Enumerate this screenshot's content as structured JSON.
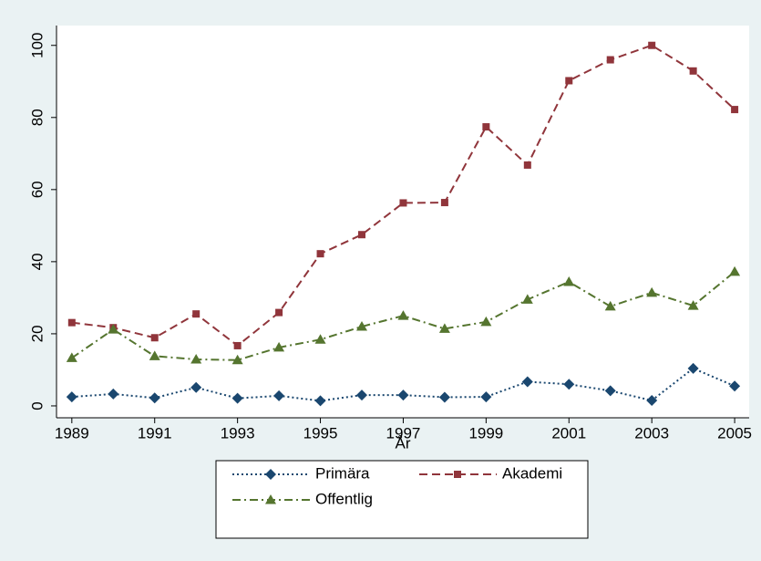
{
  "chart_data": {
    "type": "line",
    "x_label": "År",
    "x": [
      1989,
      1990,
      1991,
      1992,
      1993,
      1994,
      1995,
      1996,
      1997,
      1998,
      1999,
      2000,
      2001,
      2002,
      2003,
      2004,
      2005
    ],
    "series": [
      {
        "name": "Primära",
        "color": "#1a476f",
        "dash": "2 3",
        "marker": "diamond",
        "values": [
          2.5,
          3.3,
          2.2,
          5.1,
          2.1,
          2.8,
          1.4,
          3.0,
          3.0,
          2.4,
          2.5,
          6.7,
          6.0,
          4.2,
          1.5,
          10.4,
          5.5
        ]
      },
      {
        "name": "Akademi",
        "color": "#90353b",
        "dash": "9 5",
        "marker": "square",
        "values": [
          23.1,
          21.7,
          18.9,
          25.5,
          16.7,
          25.9,
          42.2,
          47.5,
          56.3,
          56.4,
          77.4,
          66.8,
          90.2,
          96.0,
          100.0,
          92.9,
          82.2
        ]
      },
      {
        "name": "Offentlig",
        "color": "#55752f",
        "dash": "9 4 2 4",
        "marker": "triangle",
        "values": [
          13.3,
          21.2,
          13.8,
          12.9,
          12.7,
          16.2,
          18.4,
          22.0,
          25.0,
          21.4,
          23.3,
          29.5,
          34.4,
          27.6,
          31.4,
          27.8,
          37.2
        ]
      }
    ],
    "xlim": [
      1988.63,
      2005.35
    ],
    "xticks": [
      1989,
      1991,
      1993,
      1995,
      1997,
      1999,
      2001,
      2003,
      2005
    ],
    "ylim": [
      -3.3,
      105.5
    ],
    "yticks": [
      0,
      20,
      40,
      60,
      80,
      100
    ],
    "grid": false
  }
}
